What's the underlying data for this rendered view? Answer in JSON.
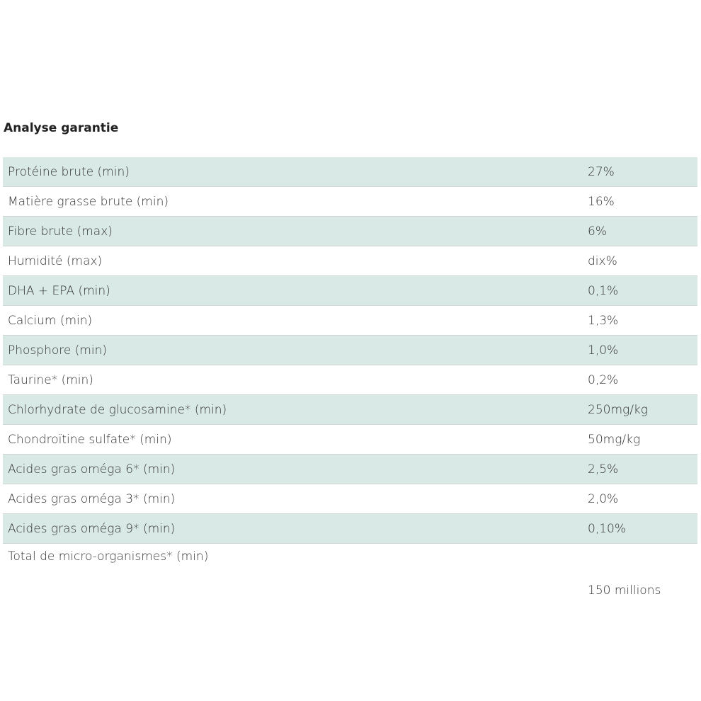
{
  "title": "Analyse garantie",
  "rows": [
    {
      "label": "Protéine brute (min)",
      "value": "27%"
    },
    {
      "label": "Matière grasse brute (min)",
      "value": "16%"
    },
    {
      "label": "Fibre brute (max)",
      "value": "6%"
    },
    {
      "label": "Humidité (max)",
      "value": "dix%"
    },
    {
      "label": "DHA + EPA (min)",
      "value": "0,1%"
    },
    {
      "label": "Calcium (min)",
      "value": "1,3%"
    },
    {
      "label": "Phosphore (min)",
      "value": "1,0%"
    },
    {
      "label": "Taurine* (min)",
      "value": "0,2%"
    },
    {
      "label": "Chlorhydrate de glucosamine* (min)",
      "value": "250mg/kg"
    },
    {
      "label": "Chondroïtine sulfate* (min)",
      "value": "50mg/kg"
    },
    {
      "label": "Acides gras oméga 6* (min)",
      "value": "2,5%"
    },
    {
      "label": "Acides gras oméga 3* (min)",
      "value": "2,0%"
    },
    {
      "label": "Acides gras oméga 9* (min)",
      "value": "0,10%"
    },
    {
      "label": "Total de micro-organismes* (min)",
      "value": "150 millions"
    }
  ],
  "colors": {
    "stripe": "#d9e9e6",
    "border": "#cfd6d4"
  }
}
